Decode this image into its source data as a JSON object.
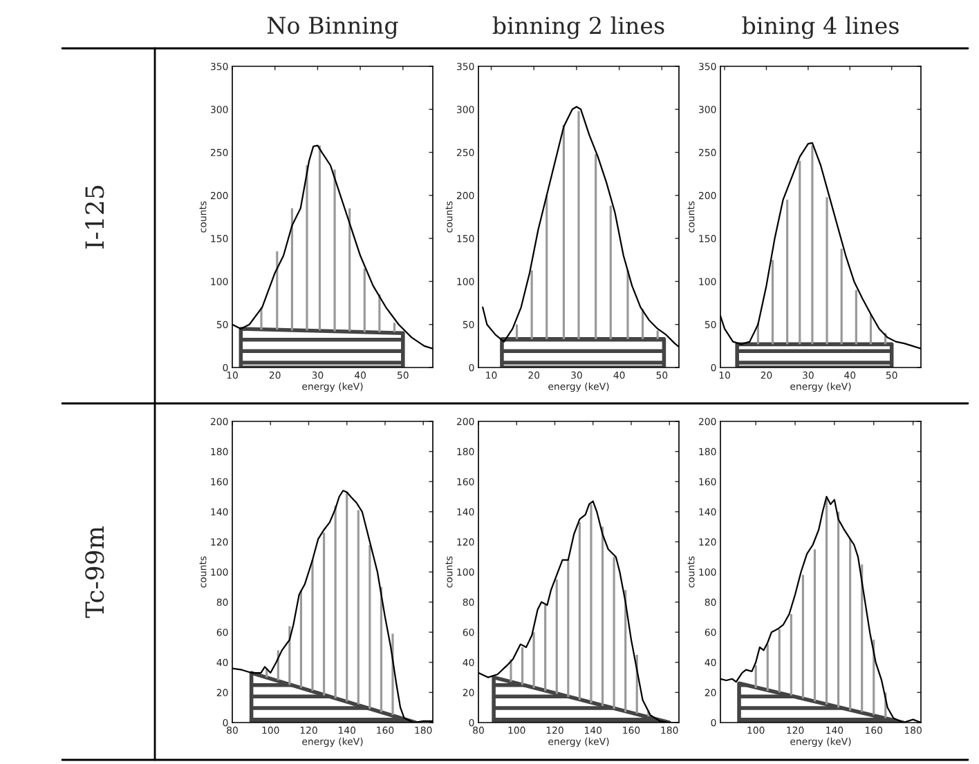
{
  "chart_data": [
    {
      "type": "line",
      "title": "No Binning",
      "xlabel": "energy (keV)",
      "ylabel": "counts",
      "annotations": [
        "I-125"
      ],
      "xlim": [
        10,
        57
      ],
      "ylim": [
        0,
        350
      ],
      "xticks": [
        10,
        20,
        30,
        40,
        50
      ],
      "yticks": [
        0,
        50,
        100,
        150,
        200,
        250,
        300,
        350
      ],
      "grid": false,
      "legend": false,
      "series": [
        {
          "type": "area",
          "color": "#444444",
          "x": [
            12,
            50
          ],
          "values": [
            45,
            40
          ]
        },
        {
          "type": "bar",
          "color": "#999999",
          "x": [
            16.8,
            20.5,
            24,
            27.5,
            30.5,
            34,
            37.5,
            41,
            44.5,
            48
          ],
          "base": [
            44,
            44,
            43,
            43,
            43,
            42,
            42,
            41,
            41,
            41
          ],
          "values": [
            26,
            91,
            142,
            192,
            215,
            188,
            143,
            74,
            44,
            11
          ]
        },
        {
          "color": "#000000",
          "x": [
            10,
            12,
            14,
            17,
            20,
            22,
            24,
            26,
            28,
            29,
            30,
            31,
            33,
            35,
            37,
            40,
            43,
            46,
            49,
            52,
            55,
            57
          ],
          "values": [
            50,
            45,
            50,
            70,
            110,
            130,
            165,
            185,
            240,
            257,
            258,
            250,
            235,
            205,
            175,
            130,
            95,
            70,
            50,
            35,
            25,
            22
          ]
        }
      ]
    },
    {
      "type": "line",
      "title": "binning 2 lines",
      "xlabel": "energy (keV)",
      "ylabel": "counts",
      "xlim": [
        7,
        54
      ],
      "ylim": [
        0,
        350
      ],
      "xticks": [
        10,
        20,
        30,
        40,
        50
      ],
      "yticks": [
        0,
        50,
        100,
        150,
        200,
        250,
        300,
        350
      ],
      "grid": false,
      "legend": false,
      "series": [
        {
          "type": "area",
          "color": "#444444",
          "x": [
            12.5,
            50.5
          ],
          "values": [
            33,
            33
          ]
        },
        {
          "type": "bar",
          "color": "#999999",
          "x": [
            16,
            19.5,
            23,
            27,
            30.5,
            34.5,
            38,
            42,
            45.5,
            49
          ],
          "base": [
            33,
            33,
            33,
            33,
            33,
            33,
            33,
            33,
            33,
            33
          ],
          "values": [
            17,
            80,
            167,
            249,
            265,
            215,
            155,
            80,
            35,
            10
          ]
        },
        {
          "color": "#000000",
          "x": [
            8,
            9,
            11,
            13,
            15,
            17,
            19,
            21,
            23,
            25,
            27,
            29,
            30,
            31,
            33,
            35,
            37,
            39,
            41,
            43,
            45,
            47,
            49,
            51,
            53,
            54
          ],
          "values": [
            70,
            50,
            38,
            30,
            45,
            70,
            110,
            160,
            200,
            240,
            280,
            300,
            303,
            300,
            270,
            245,
            215,
            180,
            130,
            95,
            70,
            55,
            45,
            38,
            28,
            24
          ]
        }
      ]
    },
    {
      "type": "line",
      "title": "bining 4 lines",
      "xlabel": "energy (keV)",
      "ylabel": "counts",
      "xlim": [
        9,
        57
      ],
      "ylim": [
        0,
        350
      ],
      "xticks": [
        10,
        20,
        30,
        40,
        50
      ],
      "yticks": [
        0,
        50,
        100,
        150,
        200,
        250,
        300,
        350
      ],
      "grid": false,
      "legend": false,
      "series": [
        {
          "type": "area",
          "color": "#444444",
          "x": [
            13,
            50
          ],
          "values": [
            27,
            27
          ]
        },
        {
          "type": "bar",
          "color": "#999999",
          "x": [
            18,
            21.5,
            25,
            28,
            31,
            34.5,
            38,
            41.5,
            45,
            48.5
          ],
          "base": [
            27,
            27,
            27,
            27,
            27,
            27,
            27,
            27,
            27,
            27
          ],
          "values": [
            25,
            98,
            168,
            213,
            231,
            171,
            111,
            63,
            35,
            13
          ]
        },
        {
          "color": "#000000",
          "x": [
            9,
            10,
            12,
            14,
            16,
            18,
            20,
            22,
            24,
            26,
            28,
            30,
            31,
            33,
            35,
            37,
            39,
            41,
            43,
            45,
            47,
            49,
            51,
            53,
            55,
            57
          ],
          "values": [
            60,
            45,
            30,
            27,
            30,
            50,
            95,
            150,
            195,
            220,
            245,
            260,
            261,
            235,
            200,
            165,
            130,
            100,
            80,
            62,
            45,
            35,
            30,
            28,
            25,
            22
          ]
        }
      ]
    },
    {
      "type": "line",
      "xlabel": "energy (keV)",
      "ylabel": "counts",
      "annotations": [
        "Tc-99m"
      ],
      "xlim": [
        80,
        185
      ],
      "ylim": [
        0,
        200
      ],
      "xticks": [
        80,
        100,
        120,
        140,
        160,
        180
      ],
      "yticks": [
        0,
        20,
        40,
        60,
        80,
        100,
        120,
        140,
        160,
        180,
        200
      ],
      "grid": false,
      "legend": false,
      "series": [
        {
          "type": "area",
          "color": "#444444",
          "x": [
            90,
            176
          ],
          "values": [
            33,
            0
          ]
        },
        {
          "type": "bar",
          "color": "#999999",
          "x": [
            98,
            104,
            110,
            116,
            122,
            128,
            134,
            140,
            146,
            152,
            158,
            164
          ],
          "base": [
            30,
            28,
            25,
            23,
            21,
            18,
            16,
            14,
            12,
            9,
            7,
            5
          ],
          "values": [
            6,
            20,
            39,
            65,
            87,
            108,
            128,
            139,
            129,
            109,
            83,
            54
          ]
        },
        {
          "color": "#000000",
          "x": [
            80,
            85,
            90,
            95,
            97,
            100,
            103,
            106,
            110,
            112,
            115,
            118,
            120,
            122,
            125,
            128,
            131,
            134,
            136,
            138,
            140,
            142,
            145,
            148,
            150,
            153,
            156,
            158,
            160,
            163,
            166,
            168,
            170,
            175,
            180,
            185
          ],
          "values": [
            36,
            35,
            33,
            33,
            37,
            33,
            40,
            48,
            55,
            65,
            85,
            92,
            100,
            108,
            122,
            128,
            133,
            142,
            150,
            154,
            153,
            150,
            146,
            140,
            130,
            115,
            100,
            85,
            70,
            50,
            25,
            10,
            3,
            0,
            1,
            1
          ]
        }
      ]
    },
    {
      "type": "line",
      "xlabel": "energy (keV)",
      "ylabel": "counts",
      "xlim": [
        80,
        185
      ],
      "ylim": [
        0,
        200
      ],
      "xticks": [
        80,
        100,
        120,
        140,
        160,
        180
      ],
      "yticks": [
        0,
        20,
        40,
        60,
        80,
        100,
        120,
        140,
        160,
        180,
        200
      ],
      "grid": false,
      "legend": false,
      "series": [
        {
          "type": "area",
          "color": "#444444",
          "x": [
            88,
            180
          ],
          "values": [
            30,
            0
          ]
        },
        {
          "type": "bar",
          "color": "#999999",
          "x": [
            97,
            103,
            109,
            115,
            121,
            127,
            133,
            139,
            145,
            151,
            157,
            163,
            169
          ],
          "base": [
            27,
            25,
            23,
            21,
            19,
            17,
            15,
            13,
            11,
            9,
            7,
            6,
            4
          ],
          "values": [
            15,
            25,
            37,
            57,
            76,
            91,
            118,
            132,
            119,
            101,
            81,
            39,
            4
          ]
        },
        {
          "color": "#000000",
          "x": [
            80,
            85,
            90,
            95,
            98,
            102,
            105,
            108,
            111,
            113,
            116,
            118,
            121,
            124,
            127,
            130,
            133,
            136,
            138,
            140,
            142,
            145,
            148,
            152,
            154,
            157,
            160,
            163,
            166,
            170,
            175,
            180,
            185
          ],
          "values": [
            33,
            30,
            32,
            38,
            42,
            52,
            50,
            58,
            75,
            80,
            78,
            88,
            98,
            108,
            108,
            125,
            135,
            138,
            145,
            147,
            140,
            125,
            115,
            110,
            100,
            80,
            55,
            35,
            15,
            5,
            1,
            0,
            0
          ]
        }
      ]
    },
    {
      "type": "line",
      "xlabel": "energy (keV)",
      "ylabel": "counts",
      "xlim": [
        82,
        184
      ],
      "ylim": [
        0,
        200
      ],
      "xticks": [
        100,
        120,
        140,
        160,
        180
      ],
      "yticks": [
        0,
        20,
        40,
        60,
        80,
        100,
        120,
        140,
        160,
        180,
        200
      ],
      "grid": false,
      "legend": false,
      "series": [
        {
          "type": "area",
          "color": "#444444",
          "x": [
            91.5,
            175
          ],
          "values": [
            26,
            0
          ]
        },
        {
          "type": "bar",
          "color": "#999999",
          "x": [
            100,
            106,
            112,
            118,
            124,
            130,
            136,
            142,
            148,
            154,
            160,
            166
          ],
          "base": [
            23,
            21,
            20,
            18,
            16,
            14,
            12,
            10,
            8,
            7,
            5,
            3
          ],
          "values": [
            15,
            31,
            42,
            54,
            82,
            101,
            136,
            130,
            114,
            98,
            50,
            17
          ]
        },
        {
          "color": "#000000",
          "x": [
            82,
            85,
            88,
            90,
            93,
            95,
            98,
            100,
            102,
            104,
            106,
            108,
            111,
            114,
            117,
            120,
            123,
            126,
            129,
            132,
            134,
            136,
            138,
            140,
            142,
            145,
            148,
            150,
            152,
            155,
            158,
            161,
            164,
            167,
            170,
            175,
            180,
            184
          ],
          "values": [
            29,
            28,
            29,
            27,
            33,
            35,
            34,
            40,
            50,
            48,
            53,
            60,
            62,
            65,
            72,
            85,
            100,
            112,
            118,
            128,
            140,
            150,
            145,
            148,
            135,
            128,
            122,
            118,
            110,
            85,
            60,
            40,
            28,
            10,
            3,
            0,
            2,
            0
          ]
        }
      ]
    }
  ]
}
